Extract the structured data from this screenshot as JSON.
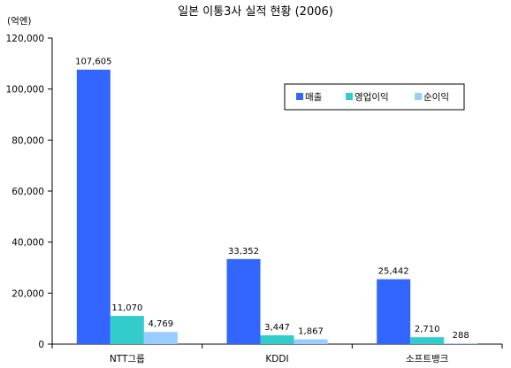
{
  "chart_data": {
    "type": "bar",
    "title": "일본 이통3사 실적 현황 (2006)",
    "unit_label": "(억엔)",
    "categories": [
      "NTT그룹",
      "KDDI",
      "소프트뱅크"
    ],
    "series": [
      {
        "name": "매출",
        "values": [
          107605,
          33352,
          25442
        ],
        "labels": [
          "107,605",
          "33,352",
          "25,442"
        ],
        "color": "#3366ff"
      },
      {
        "name": "영업이익",
        "values": [
          11070,
          3447,
          2710
        ],
        "labels": [
          "11,070",
          "3,447",
          "2,710"
        ],
        "color": "#33cccc"
      },
      {
        "name": "순이익",
        "values": [
          4769,
          1867,
          288
        ],
        "labels": [
          "4,769",
          "1,867",
          "288"
        ],
        "color": "#99ccff"
      }
    ],
    "ylim": [
      0,
      120000
    ],
    "yticks": [
      0,
      20000,
      40000,
      60000,
      80000,
      100000,
      120000
    ],
    "ytick_labels": [
      "0",
      "20,000",
      "40,000",
      "60,000",
      "80,000",
      "100,000",
      "120,000"
    ],
    "grid": false,
    "legend_position": "upper-right"
  }
}
